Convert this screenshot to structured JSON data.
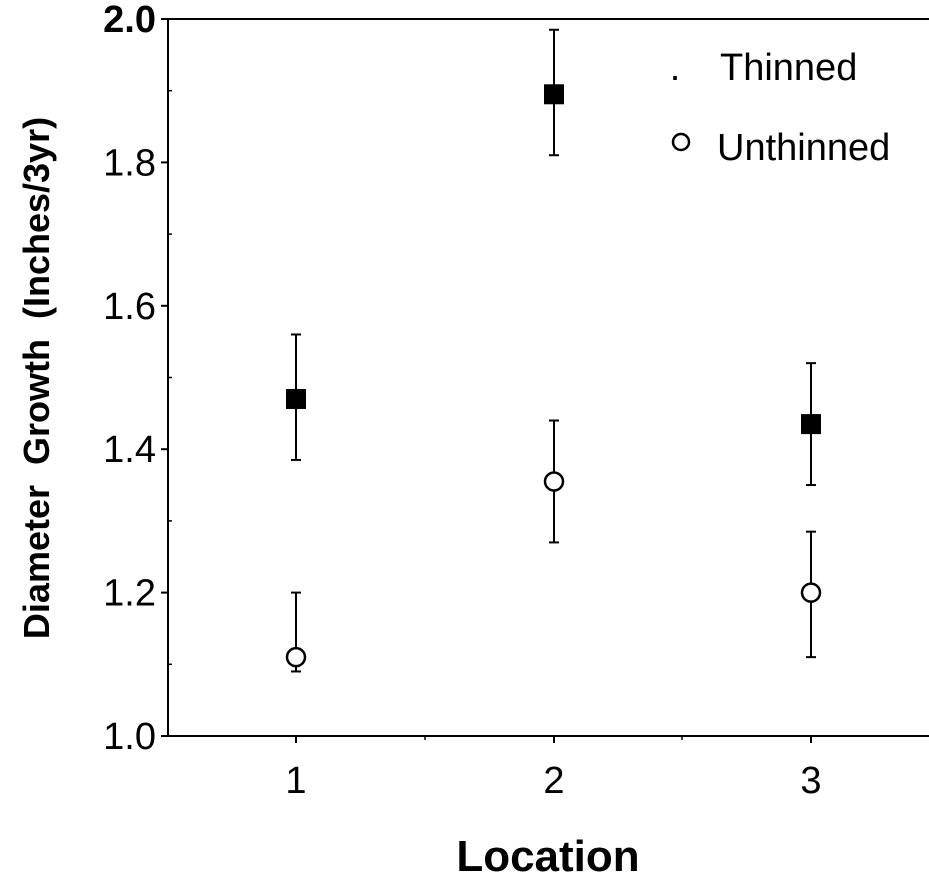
{
  "chart_data": {
    "type": "scatter",
    "xlabel": "Location",
    "ylabel": "Diameter  Growth  (Inches/3yr)",
    "categories": [
      "1",
      "2",
      "3"
    ],
    "ylim": [
      1.0,
      2.0
    ],
    "yticks": [
      "1.0",
      "1.2",
      "1.4",
      "1.6",
      "1.8",
      "2.0"
    ],
    "grid": false,
    "legend_position": "top-right",
    "series": [
      {
        "name": "Thinned",
        "legend_marker_text": ".",
        "marker": "filled-square",
        "color": "#000000",
        "values": [
          1.47,
          1.895,
          1.435
        ],
        "error_low": [
          1.385,
          1.81,
          1.35
        ],
        "error_high": [
          1.56,
          1.985,
          1.52
        ]
      },
      {
        "name": "Unthinned",
        "marker": "open-circle",
        "color": "#000000",
        "values": [
          1.11,
          1.355,
          1.2
        ],
        "error_low": [
          1.09,
          1.27,
          1.11
        ],
        "error_high": [
          1.2,
          1.44,
          1.285
        ]
      }
    ]
  }
}
